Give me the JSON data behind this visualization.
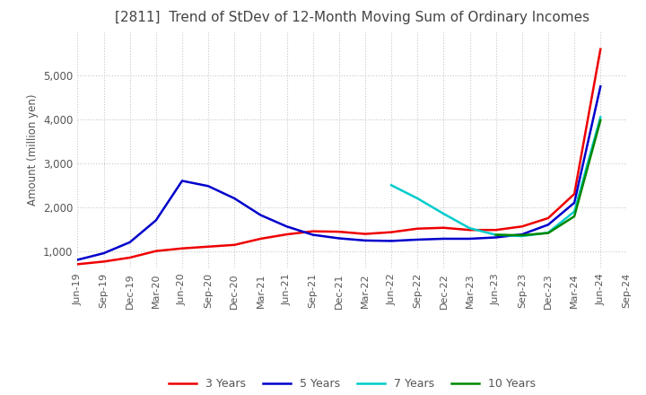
{
  "title": "[2811]  Trend of StDev of 12-Month Moving Sum of Ordinary Incomes",
  "ylabel": "Amount (million yen)",
  "background_color": "#ffffff",
  "grid_color": "#c8c8c8",
  "ylim": [
    600,
    6000
  ],
  "yticks": [
    1000,
    2000,
    3000,
    4000,
    5000
  ],
  "series": {
    "3 Years": {
      "color": "#ee0000",
      "data": [
        [
          "Jun-19",
          700
        ],
        [
          "Sep-19",
          760
        ],
        [
          "Dec-19",
          850
        ],
        [
          "Mar-20",
          1000
        ],
        [
          "Jun-20",
          1060
        ],
        [
          "Sep-20",
          1100
        ],
        [
          "Dec-20",
          1140
        ],
        [
          "Mar-21",
          1280
        ],
        [
          "Jun-21",
          1380
        ],
        [
          "Sep-21",
          1450
        ],
        [
          "Dec-21",
          1440
        ],
        [
          "Mar-22",
          1390
        ],
        [
          "Jun-22",
          1430
        ],
        [
          "Sep-22",
          1510
        ],
        [
          "Dec-22",
          1530
        ],
        [
          "Mar-23",
          1480
        ],
        [
          "Jun-23",
          1480
        ],
        [
          "Sep-23",
          1560
        ],
        [
          "Dec-23",
          1750
        ],
        [
          "Mar-24",
          2300
        ],
        [
          "Jun-24",
          5600
        ]
      ]
    },
    "5 Years": {
      "color": "#0000cc",
      "data": [
        [
          "Jun-19",
          800
        ],
        [
          "Sep-19",
          950
        ],
        [
          "Dec-19",
          1200
        ],
        [
          "Mar-20",
          1700
        ],
        [
          "Jun-20",
          2600
        ],
        [
          "Sep-20",
          2480
        ],
        [
          "Dec-20",
          2200
        ],
        [
          "Mar-21",
          1820
        ],
        [
          "Jun-21",
          1560
        ],
        [
          "Sep-21",
          1370
        ],
        [
          "Dec-21",
          1290
        ],
        [
          "Mar-22",
          1240
        ],
        [
          "Jun-22",
          1230
        ],
        [
          "Sep-22",
          1260
        ],
        [
          "Dec-22",
          1280
        ],
        [
          "Mar-23",
          1280
        ],
        [
          "Jun-23",
          1310
        ],
        [
          "Sep-23",
          1380
        ],
        [
          "Dec-23",
          1600
        ],
        [
          "Mar-24",
          2100
        ],
        [
          "Jun-24",
          4750
        ]
      ]
    },
    "7 Years": {
      "color": "#00cccc",
      "data": [
        [
          "Jun-22",
          2500
        ],
        [
          "Sep-22",
          2200
        ],
        [
          "Dec-22",
          1850
        ],
        [
          "Mar-23",
          1520
        ],
        [
          "Jun-23",
          1370
        ],
        [
          "Sep-23",
          1340
        ],
        [
          "Dec-23",
          1420
        ],
        [
          "Mar-24",
          1900
        ],
        [
          "Jun-24",
          4050
        ]
      ]
    },
    "10 Years": {
      "color": "#008800",
      "data": [
        [
          "Jun-23",
          1370
        ],
        [
          "Sep-23",
          1360
        ],
        [
          "Dec-23",
          1410
        ],
        [
          "Mar-24",
          1790
        ],
        [
          "Jun-24",
          3980
        ]
      ]
    }
  },
  "xtick_labels": [
    "Jun-19",
    "Sep-19",
    "Dec-19",
    "Mar-20",
    "Jun-20",
    "Sep-20",
    "Dec-20",
    "Mar-21",
    "Jun-21",
    "Sep-21",
    "Dec-21",
    "Mar-22",
    "Jun-22",
    "Sep-22",
    "Dec-22",
    "Mar-23",
    "Jun-23",
    "Sep-23",
    "Dec-23",
    "Mar-24",
    "Jun-24",
    "Sep-24"
  ],
  "legend": {
    "entries": [
      "3 Years",
      "5 Years",
      "7 Years",
      "10 Years"
    ],
    "colors": [
      "#ee0000",
      "#0000cc",
      "#00cccc",
      "#008800"
    ]
  }
}
